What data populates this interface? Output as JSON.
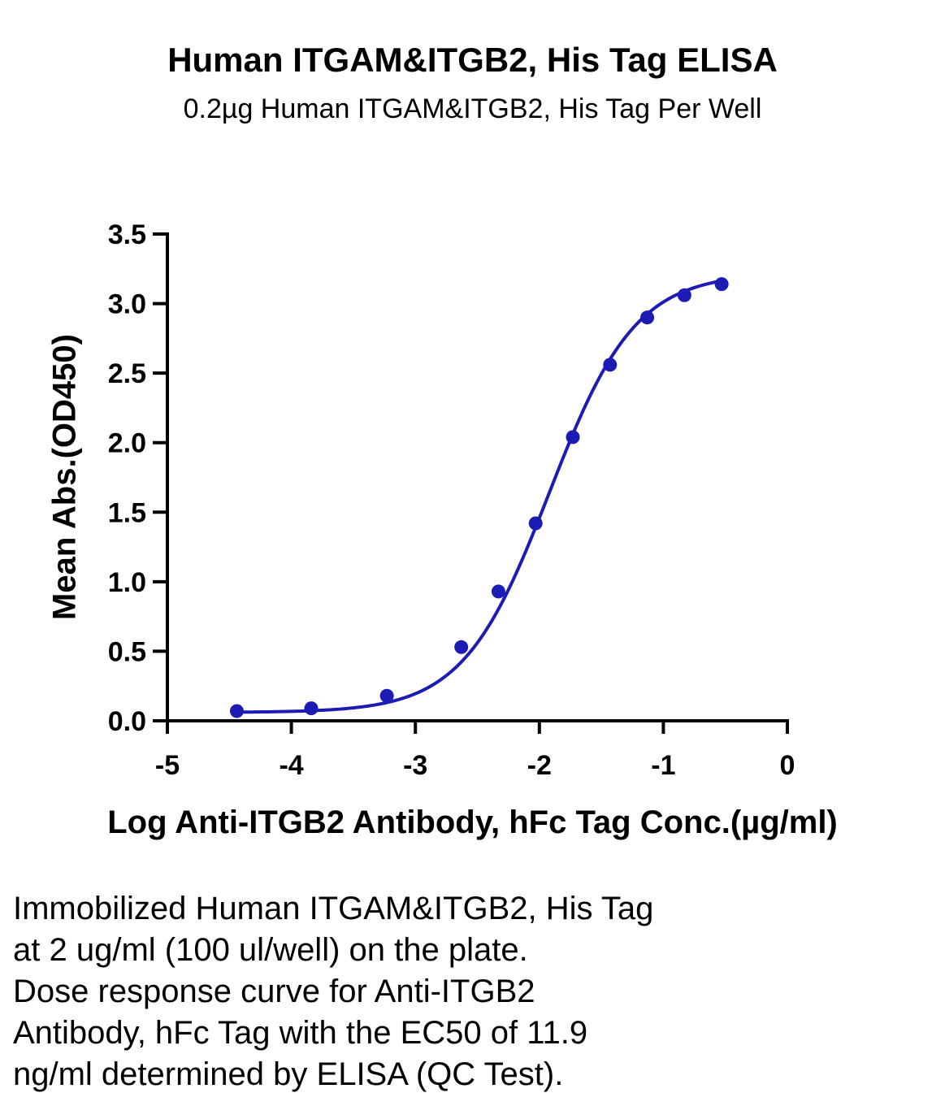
{
  "chart_data": {
    "type": "scatter",
    "title": "Human ITGAM&ITGB2, His Tag ELISA",
    "subtitle": "0.2µg Human ITGAM&ITGB2, His Tag Per Well",
    "xlabel": "Log Anti-ITGB2 Antibody, hFc Tag Conc.(µg/ml)",
    "ylabel": "Mean Abs.(OD450)",
    "xlim": [
      -5,
      0
    ],
    "ylim": [
      0,
      3.5
    ],
    "x_ticks": [
      "-5",
      "-4",
      "-3",
      "-2",
      "-1",
      "0"
    ],
    "y_ticks": [
      "0.0",
      "0.5",
      "1.0",
      "1.5",
      "2.0",
      "2.5",
      "3.0",
      "3.5"
    ],
    "grid": false,
    "series": [
      {
        "color": "#1c1cb4",
        "x": [
          -4.44,
          -3.84,
          -3.23,
          -2.63,
          -2.33,
          -2.03,
          -1.73,
          -1.43,
          -1.13,
          -0.83,
          -0.53
        ],
        "y": [
          0.07,
          0.09,
          0.18,
          0.53,
          0.93,
          1.42,
          2.04,
          2.56,
          2.9,
          3.06,
          3.14
        ]
      }
    ]
  },
  "caption": [
    "Immobilized Human ITGAM&ITGB2, His Tag",
    "at 2 ug/ml (100 ul/well) on the plate.",
    "Dose response curve for Anti-ITGB2",
    "Antibody, hFc Tag with the EC50 of 11.9",
    "ng/ml determined by ELISA (QC Test)."
  ]
}
